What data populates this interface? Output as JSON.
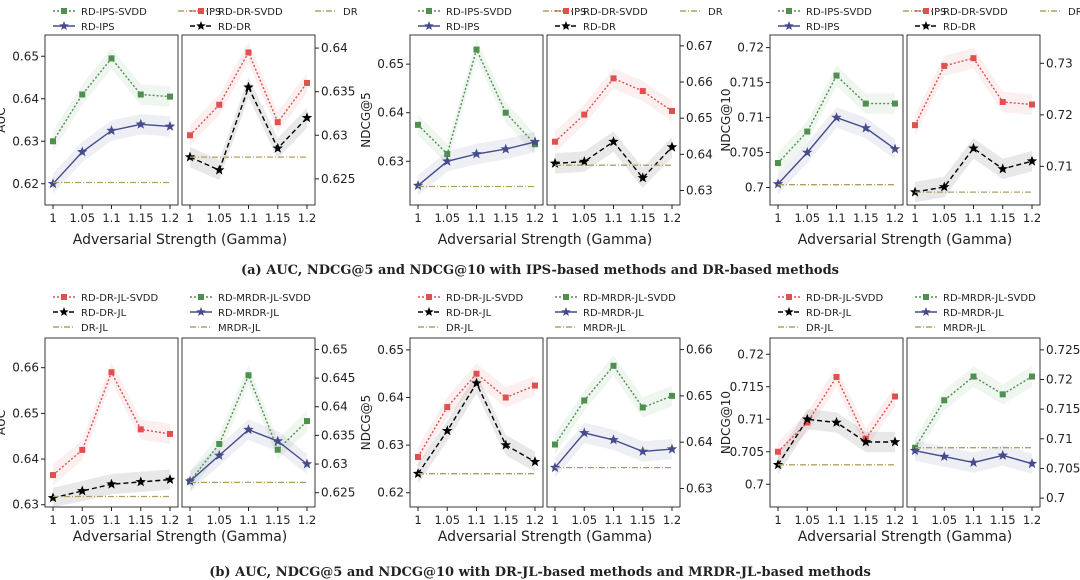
{
  "captions": {
    "a": "(a) AUC, NDCG@5 and NDCG@10 with IPS-based methods and DR-based methods",
    "b": "(b) AUC, NDCG@5 and NDCG@10 with DR-JL-based methods and MRDR-JL-based methods"
  },
  "colors": {
    "svdd_green": "#4f8f4f",
    "svdd_red": "#e05050",
    "rd_purple": "#454b8c",
    "rd_black": "#000000",
    "baseline": "#b0a060"
  },
  "chart_data": [
    {
      "type": "line",
      "panel": "row1-auc",
      "xlabel": "Adversarial Strength (Gamma)",
      "x": [
        1,
        1.05,
        1.1,
        1.15,
        1.2
      ],
      "left": {
        "ylabel": "AUC",
        "ylim": [
          0.615,
          0.655
        ],
        "yticks": [
          0.62,
          0.63,
          0.64,
          0.65
        ],
        "series": [
          {
            "name": "RD-IPS-SVDD",
            "values": [
              0.63,
              0.641,
              0.6495,
              0.641,
              0.6405
            ],
            "color": "#4f8f4f",
            "marker": "square",
            "dash": "dotted"
          },
          {
            "name": "RD-IPS",
            "values": [
              0.62,
              0.6275,
              0.6325,
              0.634,
              0.6335
            ],
            "color": "#454b8c",
            "marker": "star",
            "dash": "solid"
          },
          {
            "name": "IPS",
            "values": [
              0.6203,
              0.6203,
              0.6203,
              0.6203,
              0.6203
            ],
            "color": "#b0a060",
            "marker": "none",
            "dash": "dashdot"
          }
        ]
      },
      "right": {
        "ylim": [
          0.622,
          0.6415
        ],
        "yticks": [
          0.625,
          0.63,
          0.635,
          0.64
        ],
        "series": [
          {
            "name": "RD-DR-SVDD",
            "values": [
              0.63,
              0.6335,
              0.6395,
              0.6315,
              0.636
            ],
            "color": "#e05050",
            "marker": "square",
            "dash": "dotted"
          },
          {
            "name": "RD-DR",
            "values": [
              0.6275,
              0.626,
              0.6355,
              0.6285,
              0.632
            ],
            "color": "#000000",
            "marker": "star",
            "dash": "dashed"
          },
          {
            "name": "DR",
            "values": [
              0.6275,
              0.6275,
              0.6275,
              0.6275,
              0.6275
            ],
            "color": "#b0a060",
            "marker": "none",
            "dash": "dashdot"
          }
        ]
      }
    },
    {
      "type": "line",
      "panel": "row1-ndcg5",
      "xlabel": "Adversarial Strength (Gamma)",
      "x": [
        1,
        1.05,
        1.1,
        1.15,
        1.2
      ],
      "left": {
        "ylabel": "NDCG@5",
        "ylim": [
          0.621,
          0.656
        ],
        "yticks": [
          0.63,
          0.64,
          0.65
        ],
        "series": [
          {
            "name": "RD-IPS-SVDD",
            "values": [
              0.6375,
              0.6315,
              0.653,
              0.64,
              0.6335
            ],
            "color": "#4f8f4f",
            "marker": "square",
            "dash": "dotted"
          },
          {
            "name": "RD-IPS",
            "values": [
              0.625,
              0.63,
              0.6315,
              0.6325,
              0.634
            ],
            "color": "#454b8c",
            "marker": "star",
            "dash": "solid"
          },
          {
            "name": "IPS",
            "values": [
              0.6248,
              0.6248,
              0.6248,
              0.6248,
              0.6248
            ],
            "color": "#b0a060",
            "marker": "none",
            "dash": "dashdot"
          }
        ]
      },
      "right": {
        "ylim": [
          0.626,
          0.673
        ],
        "yticks": [
          0.63,
          0.64,
          0.65,
          0.66,
          0.67
        ],
        "series": [
          {
            "name": "RD-DR-SVDD",
            "values": [
              0.6435,
              0.651,
              0.661,
              0.6575,
              0.652
            ],
            "color": "#e05050",
            "marker": "square",
            "dash": "dotted"
          },
          {
            "name": "RD-DR",
            "values": [
              0.6375,
              0.638,
              0.6435,
              0.6335,
              0.642
            ],
            "color": "#000000",
            "marker": "star",
            "dash": "dashed"
          },
          {
            "name": "DR",
            "values": [
              0.637,
              0.637,
              0.637,
              0.637,
              0.637
            ],
            "color": "#b0a060",
            "marker": "none",
            "dash": "dashdot"
          }
        ]
      }
    },
    {
      "type": "line",
      "panel": "row1-ndcg10",
      "xlabel": "Adversarial Strength (Gamma)",
      "x": [
        1,
        1.05,
        1.1,
        1.15,
        1.2
      ],
      "left": {
        "ylabel": "NDCG@10",
        "ylim": [
          0.6975,
          0.7218
        ],
        "yticks": [
          0.7,
          0.705,
          0.71,
          0.715,
          0.72
        ],
        "series": [
          {
            "name": "RD-IPS-SVDD",
            "values": [
              0.7035,
              0.708,
              0.716,
              0.712,
              0.712
            ],
            "color": "#4f8f4f",
            "marker": "square",
            "dash": "dotted"
          },
          {
            "name": "RD-IPS",
            "values": [
              0.7005,
              0.705,
              0.71,
              0.7085,
              0.7055
            ],
            "color": "#454b8c",
            "marker": "star",
            "dash": "solid"
          },
          {
            "name": "IPS",
            "values": [
              0.7004,
              0.7004,
              0.7004,
              0.7004,
              0.7004
            ],
            "color": "#b0a060",
            "marker": "none",
            "dash": "dashdot"
          }
        ]
      },
      "right": {
        "ylim": [
          0.7025,
          0.7355
        ],
        "yticks": [
          0.71,
          0.72,
          0.73
        ],
        "series": [
          {
            "name": "RD-DR-SVDD",
            "values": [
              0.718,
              0.7295,
              0.731,
              0.7225,
              0.722
            ],
            "color": "#e05050",
            "marker": "square",
            "dash": "dotted"
          },
          {
            "name": "RD-DR",
            "values": [
              0.705,
              0.706,
              0.7135,
              0.7095,
              0.711
            ],
            "color": "#000000",
            "marker": "star",
            "dash": "dashed"
          },
          {
            "name": "DR",
            "values": [
              0.705,
              0.705,
              0.705,
              0.705,
              0.705
            ],
            "color": "#b0a060",
            "marker": "none",
            "dash": "dashdot"
          }
        ]
      }
    },
    {
      "type": "line",
      "panel": "row2-auc",
      "xlabel": "Adversarial Strength (Gamma)",
      "x": [
        1,
        1.05,
        1.1,
        1.15,
        1.2
      ],
      "left": {
        "ylabel": "AUC",
        "ylim": [
          0.6295,
          0.6665
        ],
        "yticks": [
          0.63,
          0.64,
          0.65,
          0.66
        ],
        "series": [
          {
            "name": "RD-DR-JL-SVDD",
            "values": [
              0.6365,
              0.642,
              0.659,
              0.6465,
              0.6455
            ],
            "color": "#e05050",
            "marker": "square",
            "dash": "dotted"
          },
          {
            "name": "RD-DR-JL",
            "values": [
              0.6315,
              0.633,
              0.6345,
              0.635,
              0.6355
            ],
            "color": "#000000",
            "marker": "star",
            "dash": "dashed"
          },
          {
            "name": "DR-JL",
            "values": [
              0.6318,
              0.6318,
              0.6318,
              0.6318,
              0.6318
            ],
            "color": "#b0a060",
            "marker": "none",
            "dash": "dashdot"
          }
        ]
      },
      "right": {
        "ylim": [
          0.6225,
          0.652
        ],
        "yticks": [
          0.625,
          0.63,
          0.635,
          0.64,
          0.645,
          0.65
        ],
        "series": [
          {
            "name": "RD-MRDR-JL-SVDD",
            "values": [
              0.627,
              0.6335,
              0.6455,
              0.6325,
              0.6375
            ],
            "color": "#4f8f4f",
            "marker": "square",
            "dash": "dotted"
          },
          {
            "name": "RD-MRDR-JL",
            "values": [
              0.627,
              0.6315,
              0.636,
              0.634,
              0.63
            ],
            "color": "#454b8c",
            "marker": "star",
            "dash": "solid"
          },
          {
            "name": "MRDR-JL",
            "values": [
              0.6268,
              0.6268,
              0.6268,
              0.6268,
              0.6268
            ],
            "color": "#b0a060",
            "marker": "none",
            "dash": "dashdot"
          }
        ]
      }
    },
    {
      "type": "line",
      "panel": "row2-ndcg5",
      "xlabel": "Adversarial Strength (Gamma)",
      "x": [
        1,
        1.05,
        1.1,
        1.15,
        1.2
      ],
      "left": {
        "ylabel": "NDCG@5",
        "ylim": [
          0.617,
          0.6525
        ],
        "yticks": [
          0.62,
          0.63,
          0.64,
          0.65
        ],
        "series": [
          {
            "name": "RD-DR-JL-SVDD",
            "values": [
              0.6275,
              0.638,
              0.645,
              0.64,
              0.6425
            ],
            "color": "#e05050",
            "marker": "square",
            "dash": "dotted"
          },
          {
            "name": "RD-DR-JL",
            "values": [
              0.624,
              0.633,
              0.643,
              0.63,
              0.6265
            ],
            "color": "#000000",
            "marker": "star",
            "dash": "dashed"
          },
          {
            "name": "DR-JL",
            "values": [
              0.624,
              0.624,
              0.624,
              0.624,
              0.624
            ],
            "color": "#b0a060",
            "marker": "none",
            "dash": "dashdot"
          }
        ]
      },
      "right": {
        "ylim": [
          0.626,
          0.6625
        ],
        "yticks": [
          0.63,
          0.64,
          0.65,
          0.66
        ],
        "series": [
          {
            "name": "RD-MRDR-JL-SVDD",
            "values": [
              0.6395,
              0.649,
              0.6565,
              0.6475,
              0.65
            ],
            "color": "#4f8f4f",
            "marker": "square",
            "dash": "dotted"
          },
          {
            "name": "RD-MRDR-JL",
            "values": [
              0.6345,
              0.642,
              0.6405,
              0.638,
              0.6385
            ],
            "color": "#454b8c",
            "marker": "star",
            "dash": "solid"
          },
          {
            "name": "MRDR-JL",
            "values": [
              0.6345,
              0.6345,
              0.6345,
              0.6345,
              0.6345
            ],
            "color": "#b0a060",
            "marker": "none",
            "dash": "dashdot"
          }
        ]
      }
    },
    {
      "type": "line",
      "panel": "row2-ndcg10",
      "xlabel": "Adversarial Strength (Gamma)",
      "x": [
        1,
        1.05,
        1.1,
        1.15,
        1.2
      ],
      "left": {
        "ylabel": "NDCG@10",
        "ylim": [
          0.6965,
          0.7225
        ],
        "yticks": [
          0.7,
          0.705,
          0.71,
          0.715,
          0.72
        ],
        "series": [
          {
            "name": "RD-DR-JL-SVDD",
            "values": [
              0.705,
              0.7095,
              0.7165,
              0.707,
              0.7135
            ],
            "color": "#e05050",
            "marker": "square",
            "dash": "dotted"
          },
          {
            "name": "RD-DR-JL",
            "values": [
              0.703,
              0.71,
              0.7095,
              0.7065,
              0.7065
            ],
            "color": "#000000",
            "marker": "star",
            "dash": "dashed"
          },
          {
            "name": "DR-JL",
            "values": [
              0.703,
              0.703,
              0.703,
              0.703,
              0.703
            ],
            "color": "#b0a060",
            "marker": "none",
            "dash": "dashdot"
          }
        ]
      },
      "right": {
        "ylim": [
          0.6985,
          0.727
        ],
        "yticks": [
          0.7,
          0.705,
          0.71,
          0.715,
          0.72,
          0.725
        ],
        "series": [
          {
            "name": "RD-MRDR-JL-SVDD",
            "values": [
              0.7085,
              0.7165,
              0.7205,
              0.7175,
              0.7205
            ],
            "color": "#4f8f4f",
            "marker": "square",
            "dash": "dotted"
          },
          {
            "name": "RD-MRDR-JL",
            "values": [
              0.708,
              0.707,
              0.706,
              0.7072,
              0.7058
            ],
            "color": "#454b8c",
            "marker": "star",
            "dash": "solid"
          },
          {
            "name": "MRDR-JL",
            "values": [
              0.7085,
              0.7085,
              0.7085,
              0.7085,
              0.7085
            ],
            "color": "#b0a060",
            "marker": "none",
            "dash": "dashdot"
          }
        ]
      }
    }
  ]
}
